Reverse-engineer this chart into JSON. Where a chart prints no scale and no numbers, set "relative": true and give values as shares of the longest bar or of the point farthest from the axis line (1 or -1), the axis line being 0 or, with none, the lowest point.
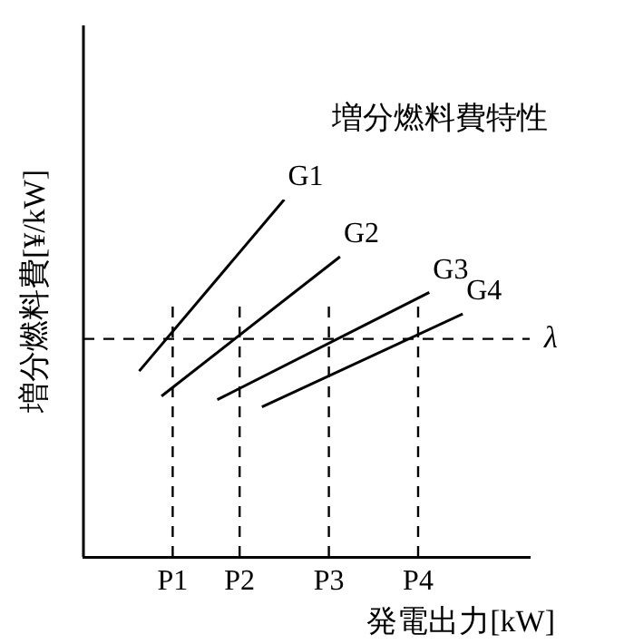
{
  "chart_data": {
    "type": "line",
    "title": "増分燃料費特性",
    "xlabel": "発電出力[kW]",
    "ylabel": "増分燃料費[¥/kW]",
    "relative": true,
    "categories": [
      null,
      null,
      null,
      null,
      null,
      null,
      null,
      null,
      "P1",
      null,
      null,
      null,
      null,
      null,
      "P2",
      null,
      null,
      null,
      null,
      null,
      null,
      null,
      "P3",
      null,
      null,
      null,
      null,
      null,
      null,
      null,
      "P4",
      null,
      null,
      null,
      null,
      null,
      null,
      null,
      null,
      null,
      null
    ],
    "series": [
      {
        "name": "G1",
        "color": "#000000",
        "values": [
          null,
          null,
          null,
          null,
          null,
          0.52,
          null,
          null,
          null,
          null,
          null,
          null,
          null,
          null,
          null,
          null,
          null,
          null,
          1.0,
          null,
          null,
          null,
          null,
          null,
          null,
          null,
          null,
          null,
          null,
          null,
          null,
          null,
          null,
          null,
          null,
          null,
          null,
          null,
          null,
          null,
          null
        ]
      },
      {
        "name": "G2",
        "color": "#000000",
        "values": [
          null,
          null,
          null,
          null,
          null,
          null,
          null,
          0.45,
          null,
          null,
          null,
          null,
          null,
          null,
          null,
          null,
          null,
          null,
          null,
          null,
          null,
          null,
          null,
          0.84,
          null,
          null,
          null,
          null,
          null,
          null,
          null,
          null,
          null,
          null,
          null,
          null,
          null,
          null,
          null,
          null,
          null
        ]
      },
      {
        "name": "G3",
        "color": "#000000",
        "values": [
          null,
          null,
          null,
          null,
          null,
          null,
          null,
          null,
          null,
          null,
          null,
          null,
          0.44,
          null,
          null,
          null,
          null,
          null,
          null,
          null,
          null,
          null,
          null,
          null,
          null,
          null,
          null,
          null,
          null,
          null,
          null,
          0.74,
          null,
          null,
          null,
          null,
          null,
          null,
          null,
          null,
          null
        ]
      },
      {
        "name": "G4",
        "color": "#000000",
        "values": [
          null,
          null,
          null,
          null,
          null,
          null,
          null,
          null,
          null,
          null,
          null,
          null,
          null,
          null,
          null,
          null,
          0.42,
          null,
          null,
          null,
          null,
          null,
          null,
          null,
          null,
          null,
          null,
          null,
          null,
          null,
          null,
          null,
          null,
          null,
          0.68,
          null,
          null,
          null,
          null,
          null,
          null
        ]
      }
    ],
    "ref_lines": [
      {
        "axis": "y",
        "value": 0.61,
        "label": "λ",
        "line_style": "dashed"
      },
      {
        "axis": "x",
        "value": "P1",
        "line_style": "dashed"
      },
      {
        "axis": "x",
        "value": "P2",
        "line_style": "dashed"
      },
      {
        "axis": "x",
        "value": "P3",
        "line_style": "dashed"
      },
      {
        "axis": "x",
        "value": "P4",
        "line_style": "dashed"
      }
    ]
  }
}
